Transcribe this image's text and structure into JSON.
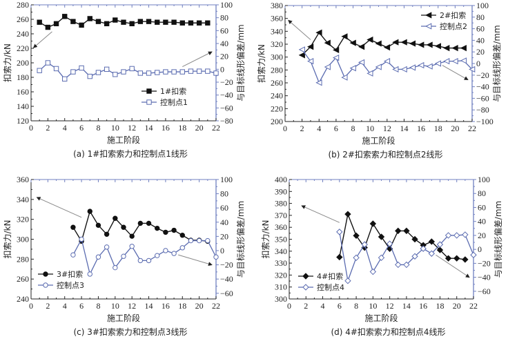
{
  "colors": {
    "force": "#111111",
    "control": "#5a6bb0",
    "right_axis": "#6f7fc0",
    "arrow": "#888888"
  },
  "chart_data": [
    {
      "type": "line",
      "id": "a",
      "caption": "(a) 1#扣索索力和控制点1线形",
      "xlabel": "施工阶段",
      "ylabel": "扣索力/kN",
      "y2label": "与目标线形偏差/mm",
      "xlim": [
        0,
        22
      ],
      "xticks": [
        0,
        2,
        4,
        6,
        8,
        10,
        12,
        14,
        16,
        18,
        20,
        22
      ],
      "ylim": [
        120,
        280
      ],
      "yticks": [
        120,
        140,
        160,
        180,
        200,
        220,
        240,
        260,
        280
      ],
      "y2lim": [
        -80,
        100
      ],
      "y2ticks": [
        -80,
        -60,
        -40,
        -20,
        0,
        20,
        40,
        60,
        80,
        100
      ],
      "legend_position": "lower-right",
      "series": [
        {
          "name": "1#扣索",
          "axis": "left",
          "marker": "filled-square",
          "x": [
            1,
            2,
            3,
            4,
            5,
            6,
            7,
            8,
            9,
            10,
            11,
            12,
            13,
            14,
            15,
            16,
            17,
            18,
            19,
            20,
            21
          ],
          "values": [
            256,
            249,
            254,
            264,
            257,
            252,
            261,
            257,
            254,
            259,
            256,
            254,
            257,
            257,
            256,
            256,
            256,
            255,
            255,
            255,
            255
          ]
        },
        {
          "name": "控制点1",
          "axis": "right",
          "marker": "open-square",
          "x": [
            1,
            2,
            3,
            4,
            5,
            6,
            7,
            8,
            9,
            10,
            11,
            12,
            13,
            14,
            15,
            16,
            17,
            18,
            19,
            20,
            21,
            22
          ],
          "values": [
            -2,
            10,
            1,
            -15,
            -4,
            2,
            -11,
            -5,
            0,
            -8,
            -4,
            1,
            -6,
            -6,
            -5,
            -4,
            -4,
            -4,
            -3,
            -3,
            -3,
            -6
          ]
        }
      ],
      "arrows": [
        {
          "from": [
            2.5,
            243
          ],
          "to": [
            0.3,
            221
          ],
          "axis": "left"
        },
        {
          "from": [
            18,
            4
          ],
          "to": [
            21.5,
            27
          ],
          "axis": "right"
        }
      ]
    },
    {
      "type": "line",
      "id": "b",
      "caption": "(b) 2#扣索索力和控制点2线形",
      "xlabel": "施工阶段",
      "ylabel": "扣索力/kN",
      "y2label": "与目标线形偏差/mm",
      "xlim": [
        0,
        22
      ],
      "xticks": [
        0,
        2,
        4,
        6,
        8,
        10,
        12,
        14,
        16,
        18,
        20,
        22
      ],
      "ylim": [
        200,
        380
      ],
      "yticks": [
        200,
        220,
        240,
        260,
        280,
        300,
        320,
        340,
        360,
        380
      ],
      "y2lim": [
        -100,
        100
      ],
      "y2ticks": [
        -100,
        -80,
        -60,
        -40,
        -20,
        0,
        20,
        40,
        60,
        80,
        100
      ],
      "legend_position": "top-right",
      "series": [
        {
          "name": "2#扣索",
          "axis": "left",
          "marker": "filled-left-triangle",
          "x": [
            2,
            3,
            4,
            5,
            6,
            7,
            8,
            9,
            10,
            11,
            12,
            13,
            14,
            15,
            16,
            17,
            18,
            19,
            20,
            21
          ],
          "values": [
            303,
            316,
            338,
            322,
            311,
            332,
            322,
            316,
            327,
            321,
            315,
            323,
            323,
            321,
            319,
            319,
            317,
            314,
            314,
            314
          ]
        },
        {
          "name": "控制点2",
          "axis": "right",
          "marker": "open-left-triangle",
          "x": [
            2,
            3,
            4,
            5,
            6,
            7,
            8,
            9,
            10,
            11,
            12,
            13,
            14,
            15,
            16,
            17,
            18,
            19,
            20,
            21,
            22
          ],
          "values": [
            24,
            4,
            -33,
            -6,
            10,
            -24,
            -8,
            2,
            -17,
            -6,
            4,
            -10,
            -10,
            -7,
            -3,
            -5,
            0,
            4,
            4,
            5,
            -10
          ]
        }
      ],
      "arrows": [
        {
          "from": [
            3,
            327
          ],
          "to": [
            0.4,
            357
          ],
          "axis": "left"
        },
        {
          "from": [
            18.5,
            -3
          ],
          "to": [
            21.5,
            -28
          ],
          "axis": "right"
        }
      ]
    },
    {
      "type": "line",
      "id": "c",
      "caption": "(c) 3#扣索索力和控制点3线形",
      "xlabel": "施工阶段",
      "ylabel": "扣索力/kN",
      "y2label": "与目标线形偏差/mm",
      "xlim": [
        0,
        22
      ],
      "xticks": [
        0,
        2,
        4,
        6,
        8,
        10,
        12,
        14,
        16,
        18,
        20,
        22
      ],
      "ylim": [
        240,
        360
      ],
      "yticks": [
        240,
        260,
        280,
        300,
        320,
        340,
        360
      ],
      "y2lim": [
        -68,
        100
      ],
      "y2ticks": [
        -60,
        -40,
        -20,
        0,
        20,
        40,
        60,
        80,
        100
      ],
      "legend_position": "lower-left",
      "series": [
        {
          "name": "3#扣索",
          "axis": "left",
          "marker": "filled-circle",
          "x": [
            5,
            6,
            7,
            8,
            9,
            10,
            11,
            12,
            13,
            14,
            15,
            16,
            17,
            18,
            19,
            20,
            21
          ],
          "values": [
            312,
            298,
            328,
            314,
            305,
            321,
            312,
            303,
            316,
            316,
            311,
            307,
            309,
            304,
            299,
            299,
            298
          ]
        },
        {
          "name": "控制点3",
          "axis": "right",
          "marker": "open-circle",
          "x": [
            5,
            6,
            7,
            8,
            9,
            10,
            11,
            12,
            13,
            14,
            15,
            16,
            17,
            18,
            19,
            20,
            21,
            22
          ],
          "values": [
            -6,
            16,
            -33,
            -9,
            5,
            -24,
            -8,
            6,
            -14,
            -14,
            -7,
            0,
            -4,
            4,
            14,
            14,
            14,
            -9
          ]
        }
      ],
      "arrows": [
        {
          "from": [
            6,
            322
          ],
          "to": [
            0.7,
            342
          ],
          "axis": "left"
        },
        {
          "from": [
            17.5,
            -6
          ],
          "to": [
            21.5,
            -20
          ],
          "axis": "right"
        }
      ]
    },
    {
      "type": "line",
      "id": "d",
      "caption": "(d) 4#扣索索力和控制点4线形",
      "xlabel": "施工阶段",
      "ylabel": "扣索力/kN",
      "y2label": "与目标线形偏差/mm",
      "xlim": [
        0,
        22
      ],
      "xticks": [
        0,
        2,
        4,
        6,
        8,
        10,
        12,
        14,
        16,
        18,
        20,
        22
      ],
      "ylim": [
        300,
        400
      ],
      "yticks": [
        300,
        310,
        320,
        330,
        340,
        350,
        360,
        370,
        380,
        390,
        400
      ],
      "y2lim": [
        -71,
        100
      ],
      "y2ticks": [
        -60,
        -40,
        -20,
        0,
        20,
        40,
        60,
        80,
        100
      ],
      "legend_position": "lower-left",
      "series": [
        {
          "name": "4#扣索",
          "axis": "left",
          "marker": "filled-diamond",
          "x": [
            6,
            7,
            8,
            9,
            10,
            11,
            12,
            13,
            14,
            15,
            16,
            17,
            18,
            19,
            20,
            21
          ],
          "values": [
            335,
            371,
            353,
            343,
            363,
            352,
            342,
            357,
            357,
            350,
            345,
            348,
            341,
            334,
            334,
            333
          ]
        },
        {
          "name": "控制点4",
          "axis": "right",
          "marker": "open-diamond",
          "x": [
            6,
            7,
            8,
            9,
            10,
            11,
            12,
            13,
            14,
            15,
            16,
            17,
            18,
            19,
            20,
            21,
            22
          ],
          "values": [
            25,
            -45,
            -12,
            7,
            -32,
            -12,
            8,
            -22,
            -22,
            -10,
            1,
            -6,
            7,
            20,
            20,
            21,
            -8
          ]
        }
      ],
      "arrows": [
        {
          "from": [
            6,
            364
          ],
          "to": [
            1.5,
            378
          ],
          "axis": "left"
        },
        {
          "from": [
            17.5,
            -8
          ],
          "to": [
            21.5,
            -40
          ],
          "axis": "right"
        }
      ]
    }
  ]
}
